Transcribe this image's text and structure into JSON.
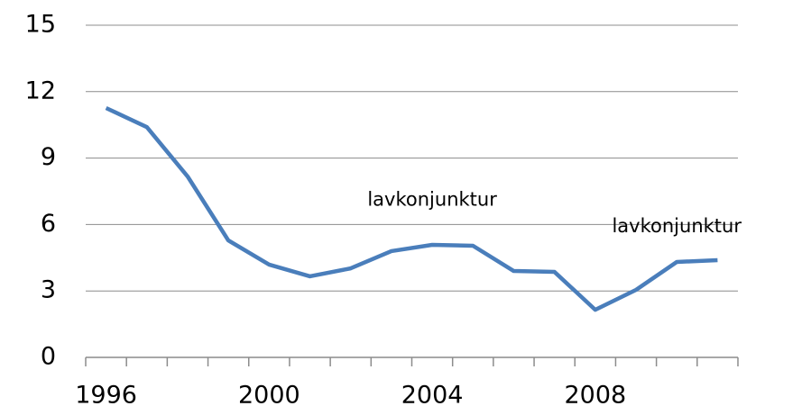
{
  "chart_data": {
    "type": "line",
    "categories": [
      "1996",
      null,
      null,
      null,
      "2000",
      null,
      null,
      null,
      "2004",
      null,
      null,
      null,
      "2008",
      null,
      null,
      null
    ],
    "series": [
      {
        "color": "#4a7ebb",
        "values": [
          11.26,
          10.4,
          8.17,
          5.28,
          4.19,
          3.66,
          4.02,
          4.8,
          5.08,
          5.04,
          3.9,
          3.86,
          2.15,
          3.05,
          4.31,
          4.39
        ]
      }
    ],
    "ylim": [
      0,
      15
    ],
    "yticks": [
      0,
      3,
      6,
      9,
      12,
      15
    ],
    "grid": true,
    "annotations": [
      {
        "text": "lavkonjunktur",
        "category": 8,
        "y": 7.1
      },
      {
        "text": "lavkonjunktur",
        "category": 14,
        "y": 5.9
      }
    ]
  }
}
